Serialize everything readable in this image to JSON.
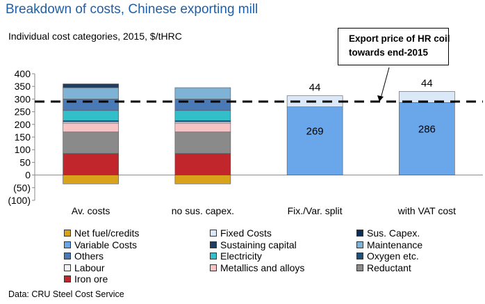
{
  "title": "Breakdown of costs, Chinese exporting mill",
  "subtitle": "Individual cost categories, 2015, $/tHRC",
  "source": "Data: CRU Steel Cost Service",
  "callout": {
    "line1": "Export price of HR coil",
    "line2": "towards end-2015"
  },
  "chart_data": {
    "type": "bar",
    "stacked": true,
    "categories": [
      "Av. costs",
      "no sus. capex.",
      "Fix./Var. split",
      "with VAT cost"
    ],
    "ylim": [
      -100,
      400
    ],
    "yticks": [
      "(100)",
      "(50)",
      "0",
      "50",
      "100",
      "150",
      "200",
      "250",
      "300",
      "350",
      "400"
    ],
    "export_price": 290,
    "series": [
      {
        "name": "Net fuel/credits",
        "color": "#d9a21b",
        "values": [
          -35,
          -35,
          0,
          0
        ]
      },
      {
        "name": "Iron ore",
        "color": "#c0262c",
        "values": [
          85,
          85,
          0,
          0
        ]
      },
      {
        "name": "Reductant",
        "color": "#8a8a8a",
        "values": [
          85,
          85,
          0,
          0
        ]
      },
      {
        "name": "Metallics and alloys",
        "color": "#f6c4c4",
        "values": [
          35,
          35,
          0,
          0
        ]
      },
      {
        "name": "Labour",
        "color": "#f2f2f2",
        "values": [
          5,
          5,
          0,
          0
        ]
      },
      {
        "name": "Oxygen etc.",
        "color": "#1f4e79",
        "values": [
          5,
          5,
          0,
          0
        ]
      },
      {
        "name": "Electricity",
        "color": "#33bfc9",
        "values": [
          40,
          40,
          0,
          0
        ]
      },
      {
        "name": "Others",
        "color": "#4a7ab5",
        "values": [
          45,
          45,
          0,
          0
        ]
      },
      {
        "name": "Maintenance",
        "color": "#7fb3d5",
        "values": [
          45,
          45,
          0,
          0
        ]
      },
      {
        "name": "Sustaining capital",
        "color": "#1f3d63",
        "values": [
          15,
          0,
          0,
          0
        ]
      },
      {
        "name": "Variable Costs",
        "color": "#6aa7ea",
        "values": [
          0,
          0,
          269,
          286
        ]
      },
      {
        "name": "Fixed Costs",
        "color": "#dbe8f8",
        "values": [
          0,
          0,
          44,
          44
        ]
      },
      {
        "name": "Sus. Capex.",
        "color": "#0d2d55",
        "values": [
          0,
          0,
          0,
          0
        ]
      }
    ],
    "data_labels": [
      {
        "category": "Fix./Var. split",
        "series": "Variable Costs",
        "text": "269"
      },
      {
        "category": "Fix./Var. split",
        "series": "Fixed Costs",
        "text": "44"
      },
      {
        "category": "with VAT cost",
        "series": "Variable Costs",
        "text": "286"
      },
      {
        "category": "with VAT cost",
        "series": "Fixed Costs",
        "text": "44"
      }
    ],
    "legend": {
      "position": "bottom",
      "items": [
        {
          "label": "Net fuel/credits",
          "color": "#d9a21b"
        },
        {
          "label": "Fixed Costs",
          "color": "#dbe8f8"
        },
        {
          "label": "Sus. Capex.",
          "color": "#0d2d55"
        },
        {
          "label": "Variable Costs",
          "color": "#6aa7ea"
        },
        {
          "label": "Sustaining capital",
          "color": "#1f3d63"
        },
        {
          "label": "Maintenance",
          "color": "#7fb3d5"
        },
        {
          "label": "Others",
          "color": "#4a7ab5"
        },
        {
          "label": "Electricity",
          "color": "#33bfc9"
        },
        {
          "label": "Oxygen etc.",
          "color": "#1f4e79"
        },
        {
          "label": "Labour",
          "color": "#f2f2f2"
        },
        {
          "label": "Metallics and alloys",
          "color": "#f6c4c4"
        },
        {
          "label": "Reductant",
          "color": "#8a8a8a"
        },
        {
          "label": "Iron ore",
          "color": "#c0262c"
        }
      ]
    }
  }
}
